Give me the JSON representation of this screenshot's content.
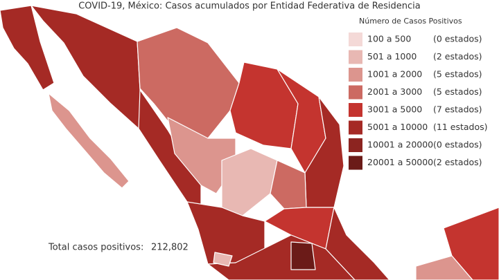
{
  "title": "COVID-19, México: Casos acumulados por Entidad Federativa de Residencia",
  "legend": {
    "title": "Número de Casos Positivos",
    "items": [
      {
        "range": "100 a    500",
        "count": "(0 estados)",
        "color": "#f4d9d7"
      },
      {
        "range": "501 a  1000",
        "count": "(2 estados)",
        "color": "#e8b8b3"
      },
      {
        "range": "1001 a  2000",
        "count": "(5 estados)",
        "color": "#dc958e"
      },
      {
        "range": "2001 a  3000",
        "count": "(5 estados)",
        "color": "#cc6a62"
      },
      {
        "range": "3001 a  5000",
        "count": "(7 estados)",
        "color": "#c4342f"
      },
      {
        "range": "5001 a 10000",
        "count": "(11 estados)",
        "color": "#a52a25"
      },
      {
        "range": "10001 a 20000",
        "count": "(0 estados)",
        "color": "#8c2420"
      },
      {
        "range": "20001 a 50000",
        "count": "(2 estados)",
        "color": "#6b1b18"
      }
    ]
  },
  "total": {
    "label": "Total casos positivos:",
    "value": "212,802"
  }
}
